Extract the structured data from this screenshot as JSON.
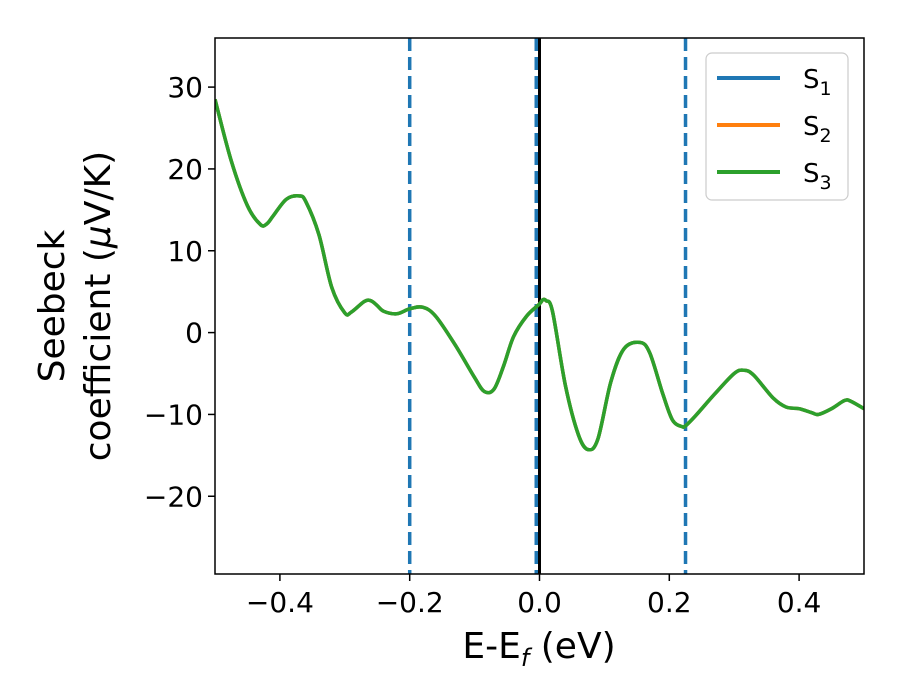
{
  "chart_data": {
    "type": "line",
    "xlabel": {
      "main": "E-E",
      "sub": "f",
      "tail": " (eV)"
    },
    "ylabel": {
      "line1": "Seebeck",
      "line2_pre": "coefficient  (",
      "line2_mu": "μ",
      "line2_post": "V/K)"
    },
    "xlim": [
      -0.5,
      0.5
    ],
    "ylim": [
      -29.5,
      36
    ],
    "xticks": [
      -0.4,
      -0.2,
      0.0,
      0.2,
      0.4
    ],
    "xtick_labels": [
      "−0.4",
      "−0.2",
      "0.0",
      "0.2",
      "0.4"
    ],
    "yticks": [
      -20,
      -10,
      0,
      10,
      20,
      30
    ],
    "ytick_labels": [
      "−20",
      "−10",
      "0",
      "10",
      "20",
      "30"
    ],
    "grid": false,
    "legend_position": "top-right",
    "vlines": [
      {
        "x": -0.2,
        "style": "dashed",
        "color": "#1f77b4"
      },
      {
        "x": -0.005,
        "style": "dashed",
        "color": "#1f77b4"
      },
      {
        "x": 0.0,
        "style": "solid",
        "color": "#000000"
      },
      {
        "x": 0.225,
        "style": "dashed",
        "color": "#1f77b4"
      }
    ],
    "x": [
      -0.5,
      -0.475,
      -0.45,
      -0.43,
      -0.42,
      -0.41,
      -0.39,
      -0.37,
      -0.36,
      -0.34,
      -0.32,
      -0.3,
      -0.29,
      -0.27,
      -0.26,
      -0.25,
      -0.24,
      -0.22,
      -0.2,
      -0.18,
      -0.16,
      -0.13,
      -0.1,
      -0.085,
      -0.07,
      -0.055,
      -0.04,
      -0.02,
      0.0,
      0.005,
      0.01,
      0.02,
      0.04,
      0.06,
      0.075,
      0.09,
      0.11,
      0.13,
      0.155,
      0.17,
      0.19,
      0.205,
      0.22,
      0.225,
      0.24,
      0.27,
      0.3,
      0.315,
      0.33,
      0.36,
      0.38,
      0.4,
      0.42,
      0.43,
      0.45,
      0.47,
      0.48,
      0.5
    ],
    "series": [
      {
        "name_main": "S",
        "name_sub": "1",
        "color": "#1f77b4",
        "values": [
          28.5,
          21,
          15.5,
          13.2,
          13.3,
          14.3,
          16.3,
          16.7,
          16,
          12,
          5.5,
          2.4,
          2.5,
          3.8,
          3.9,
          3.3,
          2.6,
          2.3,
          2.9,
          3.1,
          2,
          -1.5,
          -5.5,
          -7.2,
          -6.9,
          -4,
          -0.5,
          2,
          3.5,
          4,
          3.9,
          2.6,
          -6.5,
          -12.5,
          -14.3,
          -13,
          -6,
          -2,
          -1.2,
          -2.5,
          -7.5,
          -10.7,
          -11.5,
          -11.4,
          -10.2,
          -7.5,
          -5,
          -4.6,
          -5.2,
          -8,
          -9.1,
          -9.3,
          -9.8,
          -10,
          -9.3,
          -8.3,
          -8.4,
          -9.3
        ]
      },
      {
        "name_main": "S",
        "name_sub": "2",
        "color": "#ff7f0e",
        "values": [
          28.5,
          21,
          15.5,
          13.2,
          13.3,
          14.3,
          16.3,
          16.7,
          16,
          12,
          5.5,
          2.4,
          2.5,
          3.8,
          3.9,
          3.3,
          2.6,
          2.3,
          2.9,
          3.1,
          2,
          -1.5,
          -5.5,
          -7.2,
          -6.9,
          -4,
          -0.5,
          2,
          3.5,
          4,
          3.9,
          2.6,
          -6.5,
          -12.5,
          -14.3,
          -13,
          -6,
          -2,
          -1.2,
          -2.5,
          -7.5,
          -10.7,
          -11.5,
          -11.4,
          -10.2,
          -7.5,
          -5,
          -4.6,
          -5.2,
          -8,
          -9.1,
          -9.3,
          -9.8,
          -10,
          -9.3,
          -8.3,
          -8.4,
          -9.3
        ]
      },
      {
        "name_main": "S",
        "name_sub": "3",
        "color": "#2ca02c",
        "values": [
          28.5,
          21,
          15.5,
          13.2,
          13.3,
          14.3,
          16.3,
          16.7,
          16,
          12,
          5.5,
          2.4,
          2.5,
          3.8,
          3.9,
          3.3,
          2.6,
          2.3,
          2.9,
          3.1,
          2,
          -1.5,
          -5.5,
          -7.2,
          -6.9,
          -4,
          -0.5,
          2,
          3.5,
          4,
          3.9,
          2.6,
          -6.5,
          -12.5,
          -14.3,
          -13,
          -6,
          -2,
          -1.2,
          -2.5,
          -7.5,
          -10.7,
          -11.5,
          -11.4,
          -10.2,
          -7.5,
          -5,
          -4.6,
          -5.2,
          -8,
          -9.1,
          -9.3,
          -9.8,
          -10,
          -9.3,
          -8.3,
          -8.4,
          -9.3
        ]
      }
    ]
  }
}
